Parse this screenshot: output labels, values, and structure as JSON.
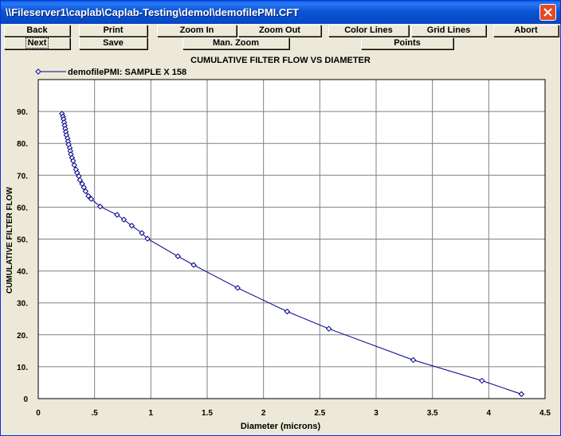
{
  "window": {
    "title": "\\\\Fileserver1\\caplab\\Caplab-Testing\\demol\\demofilePMI.CFT"
  },
  "toolbar": {
    "back": "Back",
    "print": "Print",
    "zoom_in": "Zoom In",
    "zoom_out": "Zoom Out",
    "color_lines": "Color Lines",
    "grid_lines": "Grid Lines",
    "abort": "Abort",
    "next": "Next",
    "save": "Save",
    "man_zoom": "Man. Zoom",
    "points": "Points"
  },
  "chart_data": {
    "type": "line",
    "title": "CUMULATIVE FILTER FLOW VS DIAMETER",
    "xlabel": "Diameter (microns)",
    "ylabel": "CUMULATIVE FILTER FLOW",
    "xlim": [
      0,
      4.5
    ],
    "ylim": [
      0,
      100
    ],
    "grid": true,
    "legend_position": "top-left",
    "x_tick_labels": [
      "0",
      ".5",
      "1",
      "1.5",
      "2",
      "2.5",
      "3",
      "3.5",
      "4",
      "4.5"
    ],
    "x_tick_values": [
      0,
      0.5,
      1,
      1.5,
      2,
      2.5,
      3,
      3.5,
      4,
      4.5
    ],
    "y_tick_labels": [
      "0",
      "10.",
      "20.",
      "30.",
      "40.",
      "50.",
      "60.",
      "70.",
      "80.",
      "90."
    ],
    "y_tick_values": [
      0,
      10,
      20,
      30,
      40,
      50,
      60,
      70,
      80,
      90
    ],
    "series": [
      {
        "name": "demofilePMI: SAMPLE X 158",
        "color": "#00008b",
        "marker": "diamond",
        "points": [
          [
            0.21,
            89.3
          ],
          [
            0.22,
            88.4
          ],
          [
            0.225,
            87.6
          ],
          [
            0.23,
            86.6
          ],
          [
            0.235,
            85.6
          ],
          [
            0.24,
            84.6
          ],
          [
            0.245,
            83.6
          ],
          [
            0.25,
            82.6
          ],
          [
            0.26,
            81.6
          ],
          [
            0.265,
            80.6
          ],
          [
            0.27,
            79.6
          ],
          [
            0.28,
            78.6
          ],
          [
            0.285,
            77.6
          ],
          [
            0.29,
            76.6
          ],
          [
            0.3,
            75.5
          ],
          [
            0.31,
            74.5
          ],
          [
            0.32,
            73.2
          ],
          [
            0.335,
            71.8
          ],
          [
            0.345,
            70.8
          ],
          [
            0.36,
            69.7
          ],
          [
            0.37,
            68.5
          ],
          [
            0.39,
            67.3
          ],
          [
            0.405,
            66.2
          ],
          [
            0.42,
            65.0
          ],
          [
            0.445,
            63.5
          ],
          [
            0.47,
            62.6
          ],
          [
            0.55,
            60.2
          ],
          [
            0.7,
            57.6
          ],
          [
            0.76,
            56.1
          ],
          [
            0.83,
            54.2
          ],
          [
            0.92,
            51.9
          ],
          [
            0.97,
            50.1
          ],
          [
            1.24,
            44.6
          ],
          [
            1.38,
            41.9
          ],
          [
            1.77,
            34.7
          ],
          [
            2.21,
            27.3
          ],
          [
            2.58,
            21.9
          ],
          [
            3.33,
            12.1
          ],
          [
            3.94,
            5.6
          ],
          [
            4.29,
            1.4
          ]
        ]
      }
    ]
  }
}
